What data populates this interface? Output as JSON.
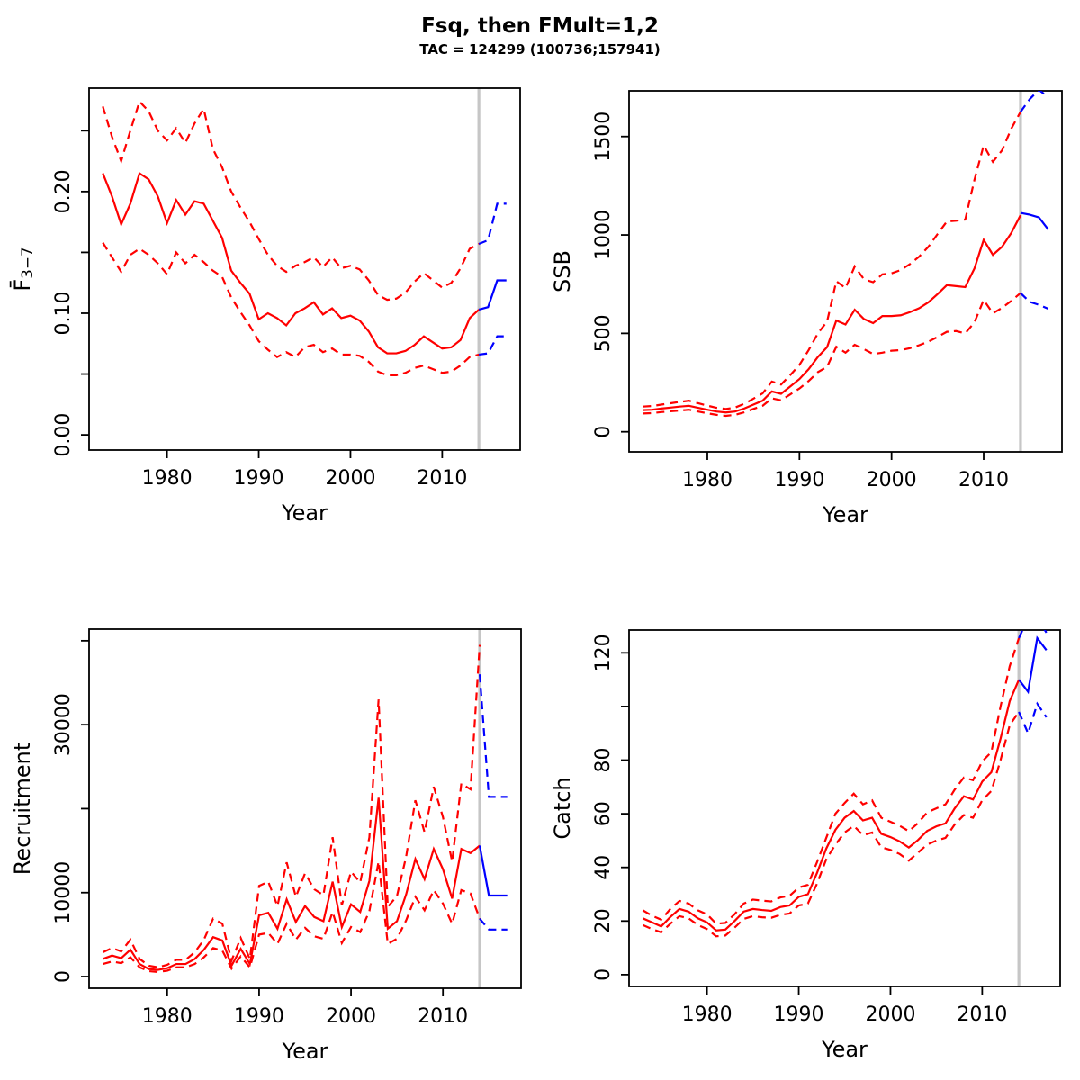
{
  "header": {
    "title": "Fsq, then FMult=1,2",
    "subtitle": "TAC = 124299 (100736;157941)"
  },
  "colors": {
    "history": "#ff0000",
    "forecast": "#0000ff",
    "divider": "#c6c6c6",
    "frame": "#000000"
  },
  "divider_year": 2014,
  "years_history": [
    1973,
    1974,
    1975,
    1976,
    1977,
    1978,
    1979,
    1980,
    1981,
    1982,
    1983,
    1984,
    1985,
    1986,
    1987,
    1988,
    1989,
    1990,
    1991,
    1992,
    1993,
    1994,
    1995,
    1996,
    1997,
    1998,
    1999,
    2000,
    2001,
    2002,
    2003,
    2004,
    2005,
    2006,
    2007,
    2008,
    2009,
    2010,
    2011,
    2012,
    2013,
    2014
  ],
  "years_forecast": [
    2014,
    2015,
    2016,
    2017
  ],
  "chart_data": [
    {
      "id": "fbar",
      "type": "line",
      "xlabel": "Year",
      "ylabel": "F3-7",
      "ylabel_parts": [
        {
          "t": "F̄"
        },
        {
          "t": "3−7",
          "sub": true
        }
      ],
      "xlim": [
        1971.5,
        2018.5
      ],
      "ylim": [
        -0.0125,
        0.285
      ],
      "xticks": [
        1980,
        1990,
        2000,
        2010
      ],
      "yticks": [
        0,
        0.05,
        0.1,
        0.15,
        0.2,
        0.25
      ],
      "ytick_labels": [
        "0.00",
        "",
        "0.10",
        "",
        "0.20",
        ""
      ],
      "series": [
        {
          "name": "median",
          "style": "solid",
          "color": "history",
          "values": [
            0.215,
            0.196,
            0.173,
            0.19,
            0.215,
            0.21,
            0.196,
            0.174,
            0.193,
            0.181,
            0.192,
            0.19,
            0.176,
            0.162,
            0.135,
            0.125,
            0.116,
            0.095,
            0.1,
            0.096,
            0.09,
            0.1,
            0.104,
            0.109,
            0.099,
            0.104,
            0.096,
            0.098,
            0.094,
            0.085,
            0.072,
            0.067,
            0.067,
            0.069,
            0.074,
            0.081,
            0.076,
            0.071,
            0.072,
            0.078,
            0.096,
            0.103
          ]
        },
        {
          "name": "ci-upper",
          "style": "dashed",
          "color": "history",
          "values": [
            0.27,
            0.245,
            0.225,
            0.25,
            0.274,
            0.266,
            0.25,
            0.242,
            0.252,
            0.24,
            0.256,
            0.268,
            0.235,
            0.22,
            0.2,
            0.187,
            0.175,
            0.161,
            0.148,
            0.139,
            0.134,
            0.139,
            0.142,
            0.146,
            0.138,
            0.146,
            0.137,
            0.139,
            0.136,
            0.127,
            0.115,
            0.111,
            0.112,
            0.117,
            0.126,
            0.133,
            0.127,
            0.121,
            0.125,
            0.137,
            0.153,
            0.157
          ]
        },
        {
          "name": "ci-lower",
          "style": "dashed",
          "color": "history",
          "values": [
            0.158,
            0.146,
            0.134,
            0.148,
            0.153,
            0.148,
            0.141,
            0.132,
            0.15,
            0.141,
            0.148,
            0.142,
            0.135,
            0.13,
            0.113,
            0.101,
            0.09,
            0.077,
            0.07,
            0.064,
            0.068,
            0.064,
            0.072,
            0.074,
            0.068,
            0.071,
            0.066,
            0.066,
            0.065,
            0.06,
            0.052,
            0.049,
            0.049,
            0.051,
            0.055,
            0.057,
            0.054,
            0.051,
            0.052,
            0.057,
            0.064,
            0.066
          ]
        },
        {
          "name": "forecast-median",
          "style": "solid",
          "color": "forecast",
          "forecast": true,
          "values": [
            0.103,
            0.105,
            0.127,
            0.127
          ]
        },
        {
          "name": "forecast-ci-upper",
          "style": "dashed",
          "color": "forecast",
          "forecast": true,
          "values": [
            0.157,
            0.16,
            0.19,
            0.19
          ]
        },
        {
          "name": "forecast-ci-lower",
          "style": "dashed",
          "color": "forecast",
          "forecast": true,
          "values": [
            0.066,
            0.067,
            0.081,
            0.081
          ]
        }
      ]
    },
    {
      "id": "ssb",
      "type": "line",
      "xlabel": "Year",
      "ylabel": "SSB",
      "xlim": [
        1971.5,
        2018.5
      ],
      "ylim": [
        -102,
        1732
      ],
      "xticks": [
        1980,
        1990,
        2000,
        2010
      ],
      "yticks": [
        0,
        500,
        1000,
        1500
      ],
      "ytick_labels": [
        "0",
        "500",
        "1000",
        "1500"
      ],
      "series": [
        {
          "name": "median",
          "style": "solid",
          "color": "history",
          "values": [
            110,
            112,
            118,
            123,
            128,
            132,
            122,
            112,
            103,
            98,
            103,
            118,
            138,
            158,
            205,
            193,
            230,
            268,
            318,
            380,
            430,
            565,
            545,
            620,
            573,
            552,
            588,
            588,
            592,
            608,
            628,
            658,
            700,
            745,
            740,
            735,
            830,
            975,
            899,
            940,
            1010,
            1100
          ]
        },
        {
          "name": "ci-upper",
          "style": "dashed",
          "color": "history",
          "values": [
            128,
            131,
            138,
            145,
            152,
            158,
            145,
            133,
            122,
            116,
            123,
            142,
            168,
            195,
            255,
            240,
            288,
            340,
            415,
            500,
            560,
            765,
            730,
            840,
            775,
            760,
            800,
            805,
            822,
            852,
            890,
            940,
            1005,
            1068,
            1072,
            1078,
            1280,
            1455,
            1371,
            1430,
            1540,
            1625
          ]
        },
        {
          "name": "ci-lower",
          "style": "dashed",
          "color": "history",
          "values": [
            93,
            95,
            100,
            104,
            108,
            112,
            103,
            94,
            86,
            81,
            86,
            99,
            116,
            132,
            170,
            160,
            190,
            220,
            258,
            303,
            330,
            432,
            402,
            442,
            420,
            395,
            402,
            412,
            415,
            425,
            440,
            458,
            482,
            508,
            512,
            500,
            556,
            670,
            602,
            630,
            665,
            705
          ]
        },
        {
          "name": "forecast-median",
          "style": "solid",
          "color": "forecast",
          "forecast": true,
          "values": [
            1112,
            1103,
            1089,
            1028
          ]
        },
        {
          "name": "forecast-ci-upper",
          "style": "dashed",
          "color": "forecast",
          "forecast": true,
          "values": [
            1625,
            1690,
            1737,
            1700
          ]
        },
        {
          "name": "forecast-ci-lower",
          "style": "dashed",
          "color": "forecast",
          "forecast": true,
          "values": [
            705,
            660,
            645,
            625
          ]
        }
      ]
    },
    {
      "id": "recruitment",
      "type": "line",
      "xlabel": "Year",
      "ylabel": "Recruitment",
      "xlim": [
        1971.5,
        2018.5
      ],
      "ylim": [
        -1390,
        41380
      ],
      "xticks": [
        1980,
        1990,
        2000,
        2010
      ],
      "yticks": [
        0,
        10000,
        20000,
        30000,
        40000
      ],
      "ytick_labels": [
        "0",
        "10000",
        "",
        "30000",
        ""
      ],
      "series": [
        {
          "name": "median",
          "style": "solid",
          "color": "history",
          "values": [
            2100,
            2500,
            2200,
            3200,
            1500,
            900,
            800,
            1000,
            1500,
            1500,
            2100,
            3200,
            4700,
            4300,
            1300,
            3300,
            1500,
            7300,
            7600,
            5700,
            9200,
            6500,
            8400,
            7100,
            6600,
            11300,
            5900,
            8600,
            7700,
            11400,
            21300,
            5700,
            6600,
            9800,
            14000,
            11600,
            15200,
            12800,
            9300,
            15200,
            14700,
            15600
          ]
        },
        {
          "name": "ci-upper",
          "style": "dashed",
          "color": "history",
          "values": [
            2900,
            3400,
            3000,
            4400,
            2100,
            1300,
            1100,
            1400,
            2000,
            2000,
            2900,
            4400,
            6900,
            6300,
            1900,
            4600,
            2100,
            10800,
            11300,
            8400,
            13600,
            9500,
            12300,
            10400,
            9700,
            16600,
            8500,
            12500,
            11200,
            16600,
            33000,
            8300,
            9600,
            14300,
            21000,
            17200,
            22600,
            19000,
            13700,
            23000,
            22300,
            39500
          ]
        },
        {
          "name": "ci-lower",
          "style": "dashed",
          "color": "history",
          "values": [
            1500,
            1800,
            1600,
            2300,
            1100,
            650,
            550,
            700,
            1100,
            1100,
            1500,
            2300,
            3400,
            3100,
            950,
            2400,
            1100,
            5000,
            5200,
            3900,
            6300,
            4400,
            5800,
            4800,
            4500,
            7700,
            4000,
            5900,
            5300,
            7800,
            13700,
            3900,
            4500,
            6700,
            9500,
            7900,
            10300,
            8700,
            6300,
            10300,
            9900,
            6900
          ]
        },
        {
          "name": "forecast-median",
          "style": "solid",
          "color": "forecast",
          "forecast": true,
          "values": [
            15600,
            9650,
            9650,
            9650
          ]
        },
        {
          "name": "forecast-ci-upper",
          "style": "dashed",
          "color": "forecast",
          "forecast": true,
          "values": [
            36000,
            21400,
            21400,
            21400
          ]
        },
        {
          "name": "forecast-ci-lower",
          "style": "dashed",
          "color": "forecast",
          "forecast": true,
          "values": [
            6900,
            5600,
            5600,
            5600
          ]
        }
      ]
    },
    {
      "id": "catch",
      "type": "line",
      "xlabel": "Year",
      "ylabel": "Catch",
      "xlim": [
        1971.5,
        2018.5
      ],
      "ylim": [
        -4.4,
        128.5
      ],
      "xticks": [
        1980,
        1990,
        2000,
        2010
      ],
      "yticks": [
        0,
        20,
        40,
        60,
        80,
        100,
        120
      ],
      "ytick_labels": [
        "0",
        "20",
        "40",
        "60",
        "80",
        "",
        "120"
      ],
      "series": [
        {
          "name": "median",
          "style": "solid",
          "color": "history",
          "values": [
            21,
            19.5,
            18,
            21.5,
            24.5,
            23.5,
            21,
            19.5,
            16.5,
            16.8,
            20,
            23.5,
            24.5,
            24.1,
            23.8,
            25.2,
            25.8,
            29,
            30,
            38,
            47,
            54,
            58.5,
            61,
            57.5,
            58.5,
            52.5,
            51.3,
            49.7,
            47.4,
            50.2,
            53.6,
            55.3,
            56.4,
            62,
            66.5,
            65.3,
            72,
            75.5,
            88,
            102,
            110
          ]
        },
        {
          "name": "ci-upper",
          "style": "dashed",
          "color": "history",
          "values": [
            24,
            22,
            20.5,
            24.5,
            27.5,
            26.5,
            24,
            22.5,
            19,
            19.3,
            22.5,
            26.5,
            28,
            27.6,
            27.3,
            28.8,
            29.4,
            32.5,
            33.5,
            42,
            51,
            60,
            64,
            67.5,
            63.5,
            65,
            58.5,
            57,
            55.5,
            53.5,
            56.5,
            60.5,
            62,
            63.5,
            69,
            73.5,
            72.5,
            79.5,
            83,
            100,
            115,
            125.5
          ]
        },
        {
          "name": "ci-lower",
          "style": "dashed",
          "color": "history",
          "values": [
            18.5,
            17,
            15.8,
            19,
            21.8,
            21,
            18.5,
            17,
            14.3,
            14.6,
            17.5,
            20.8,
            21.8,
            21.4,
            21.2,
            22.3,
            22.8,
            25.8,
            26.5,
            34,
            43,
            48.5,
            53,
            55.5,
            52,
            53,
            47.5,
            46.5,
            45,
            42.5,
            45.5,
            48.5,
            50,
            51,
            56,
            59.5,
            58.5,
            65,
            68.5,
            80,
            93,
            98
          ]
        },
        {
          "name": "forecast-median",
          "style": "solid",
          "color": "forecast",
          "forecast": true,
          "values": [
            110,
            105.5,
            125.5,
            121
          ]
        },
        {
          "name": "forecast-ci-upper",
          "style": "dashed",
          "color": "forecast",
          "forecast": true,
          "values": [
            125.5,
            133,
            133,
            127.5
          ]
        },
        {
          "name": "forecast-ci-lower",
          "style": "dashed",
          "color": "forecast",
          "forecast": true,
          "values": [
            98,
            90,
            101,
            96
          ]
        }
      ]
    }
  ]
}
